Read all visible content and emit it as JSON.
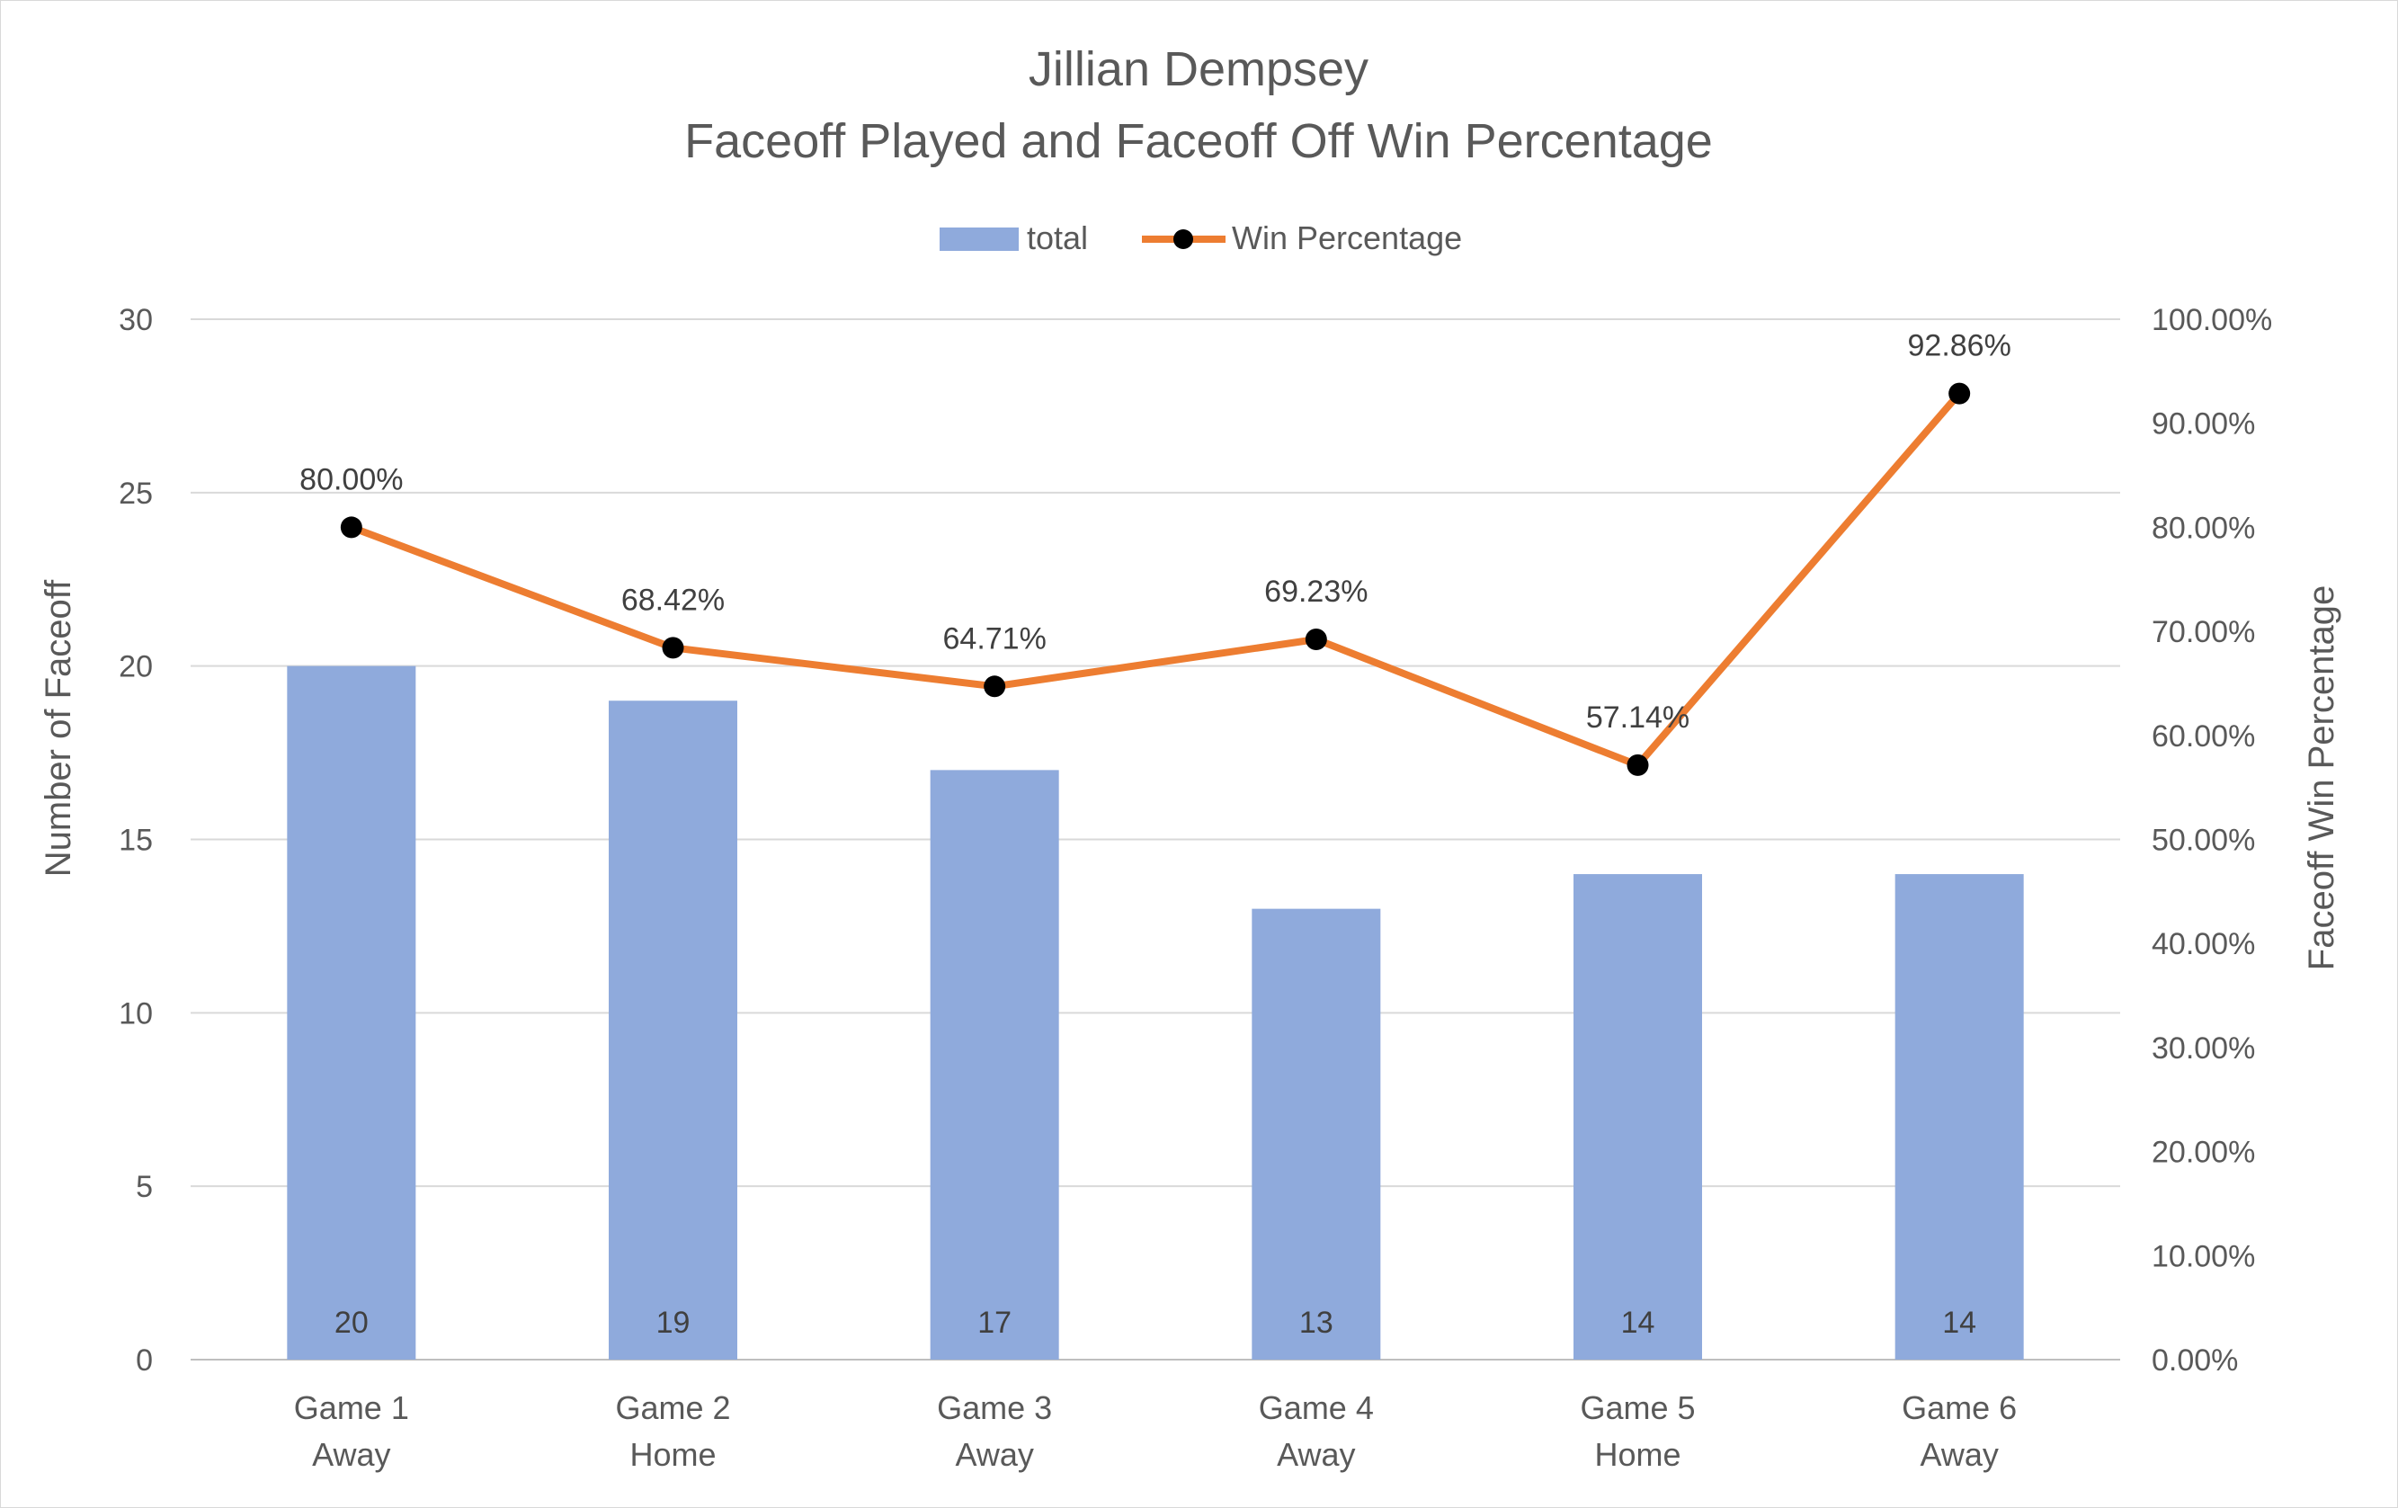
{
  "chart_data": {
    "type": "bar",
    "title": [
      "Jillian Dempsey",
      "Faceoff Played and Faceoff Off Win Percentage"
    ],
    "categories": [
      [
        "Game 1",
        "Away"
      ],
      [
        "Game 2",
        "Home"
      ],
      [
        "Game 3",
        "Away"
      ],
      [
        "Game 4",
        "Away"
      ],
      [
        "Game 5",
        "Home"
      ],
      [
        "Game 6",
        "Away"
      ]
    ],
    "series": [
      {
        "name": "total",
        "type": "bar",
        "axis": "left",
        "color": "#8faadc",
        "values": [
          20,
          19,
          17,
          13,
          14,
          14
        ],
        "labels": [
          "20",
          "19",
          "17",
          "13",
          "14",
          "14"
        ]
      },
      {
        "name": "Win Percentage",
        "type": "line",
        "axis": "right",
        "color": "#ed7d31",
        "marker_color": "#000000",
        "values": [
          80.0,
          68.42,
          64.71,
          69.23,
          57.14,
          92.86
        ],
        "labels": [
          "80.00%",
          "68.42%",
          "64.71%",
          "69.23%",
          "57.14%",
          "92.86%"
        ]
      }
    ],
    "ylabel": "Number of Faceoff",
    "ylabel_right": "Faceoff Win Percentage",
    "ylim": [
      0,
      30
    ],
    "ylim_right": [
      0,
      100
    ],
    "yticks": [
      "0",
      "5",
      "10",
      "15",
      "20",
      "25",
      "30"
    ],
    "yticks_right": [
      "0.00%",
      "10.00%",
      "20.00%",
      "30.00%",
      "40.00%",
      "50.00%",
      "60.00%",
      "70.00%",
      "80.00%",
      "90.00%",
      "100.00%"
    ],
    "grid": true,
    "legend_position": "top"
  }
}
